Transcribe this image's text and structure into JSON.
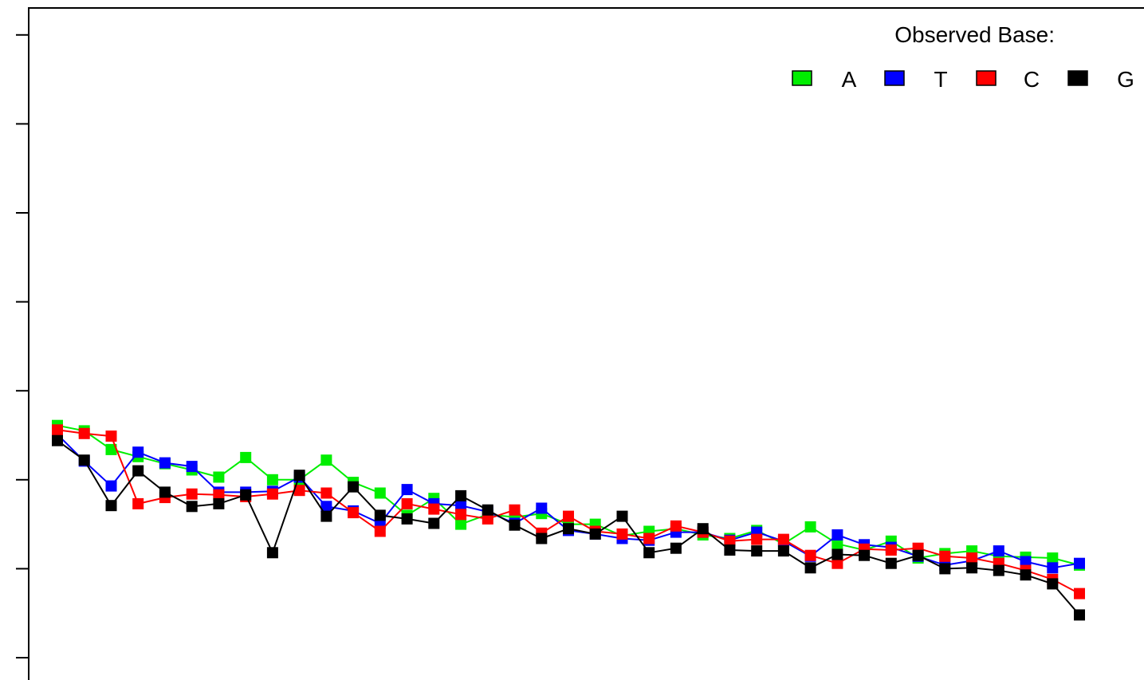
{
  "chart_data": {
    "type": "line",
    "title": "",
    "xlabel": "",
    "ylabel": "",
    "x": [
      1,
      2,
      3,
      4,
      5,
      6,
      7,
      8,
      9,
      10,
      11,
      12,
      13,
      14,
      15,
      16,
      17,
      18,
      19,
      20,
      21,
      22,
      23,
      24,
      25,
      26,
      27,
      28,
      29,
      30,
      31,
      32,
      33,
      34,
      35,
      36,
      37,
      38,
      39
    ],
    "xlim": [
      0,
      40
    ],
    "ylim": [
      0,
      7.2
    ],
    "grid": false,
    "legend": {
      "title": "Observed Base:",
      "position": "top-right"
    },
    "series": [
      {
        "name": "A",
        "color": "#00ee00",
        "values": [
          2.61,
          2.55,
          2.34,
          2.26,
          2.18,
          2.11,
          2.03,
          2.25,
          2.0,
          2.0,
          2.22,
          1.97,
          1.85,
          1.6,
          1.79,
          1.5,
          1.61,
          1.58,
          1.62,
          1.5,
          1.5,
          1.37,
          1.42,
          1.45,
          1.38,
          1.34,
          1.43,
          1.28,
          1.47,
          1.28,
          1.21,
          1.31,
          1.12,
          1.17,
          1.2,
          1.14,
          1.13,
          1.12,
          1.04
        ]
      },
      {
        "name": "T",
        "color": "#0000ff",
        "values": [
          2.51,
          2.21,
          1.93,
          2.31,
          2.19,
          2.15,
          1.86,
          1.86,
          1.87,
          2.03,
          1.7,
          1.65,
          1.51,
          1.89,
          1.73,
          1.71,
          1.64,
          1.51,
          1.68,
          1.43,
          1.39,
          1.34,
          1.32,
          1.41,
          1.41,
          1.32,
          1.41,
          1.31,
          1.14,
          1.38,
          1.27,
          1.24,
          1.14,
          1.04,
          1.09,
          1.2,
          1.08,
          1.01,
          1.06
        ]
      },
      {
        "name": "C",
        "color": "#ff0000",
        "values": [
          2.56,
          2.52,
          2.49,
          1.73,
          1.8,
          1.84,
          1.83,
          1.81,
          1.84,
          1.88,
          1.85,
          1.63,
          1.42,
          1.73,
          1.67,
          1.61,
          1.56,
          1.66,
          1.4,
          1.59,
          1.42,
          1.39,
          1.34,
          1.48,
          1.41,
          1.31,
          1.33,
          1.33,
          1.15,
          1.06,
          1.22,
          1.21,
          1.23,
          1.14,
          1.12,
          1.06,
          0.98,
          0.88,
          0.72
        ]
      },
      {
        "name": "G",
        "color": "#000000",
        "values": [
          2.44,
          2.22,
          1.71,
          2.1,
          1.86,
          1.7,
          1.73,
          1.83,
          1.18,
          2.05,
          1.59,
          1.92,
          1.6,
          1.56,
          1.51,
          1.82,
          1.66,
          1.49,
          1.34,
          1.45,
          1.39,
          1.59,
          1.18,
          1.23,
          1.45,
          1.21,
          1.2,
          1.2,
          1.01,
          1.16,
          1.15,
          1.06,
          1.15,
          1.0,
          1.01,
          0.98,
          0.93,
          0.83,
          0.48
        ]
      }
    ]
  }
}
